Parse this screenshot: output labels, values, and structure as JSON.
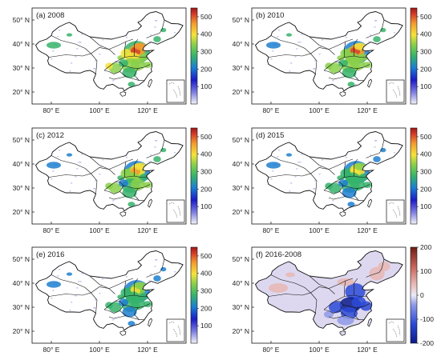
{
  "figure": {
    "panels": [
      {
        "label": "(a) 2008",
        "type": "sequential",
        "intensity": 1.0
      },
      {
        "label": "(b) 2010",
        "type": "sequential",
        "intensity": 0.95
      },
      {
        "label": "(c) 2012",
        "type": "sequential",
        "intensity": 0.85
      },
      {
        "label": "(d) 2015",
        "type": "sequential",
        "intensity": 0.75
      },
      {
        "label": "(e) 2016",
        "type": "sequential",
        "intensity": 0.7
      },
      {
        "label": "(f) 2016-2008",
        "type": "diverging",
        "intensity": 1.0
      }
    ],
    "axes": {
      "x_ticks": [
        "80° E",
        "100° E",
        "120° E"
      ],
      "y_ticks": [
        "50° N",
        "40° N",
        "30° N",
        "20° N"
      ]
    },
    "colorbars": {
      "sequential": {
        "ticks": [
          "500",
          "400",
          "300",
          "200",
          "100"
        ],
        "range": [
          0,
          550
        ],
        "colors": [
          "#f3f3fb",
          "#8080e0",
          "#1c1cc8",
          "#1d7fd0",
          "#36b36b",
          "#8ad04a",
          "#f5e23a",
          "#f29a2e",
          "#d8402a",
          "#a21818"
        ]
      },
      "diverging": {
        "ticks": [
          "200",
          "100",
          "0",
          "-100",
          "-200"
        ],
        "range": [
          -200,
          200
        ],
        "colors": [
          "#0b1a8a",
          "#2c4ad6",
          "#8f9ae8",
          "#ecebf6",
          "#e8b7b4",
          "#c66259",
          "#6e1c12"
        ]
      }
    }
  }
}
